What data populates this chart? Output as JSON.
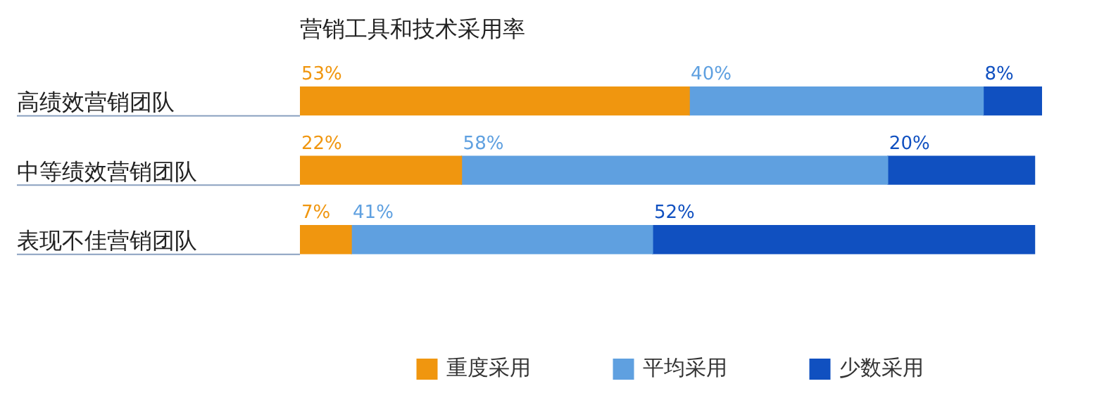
{
  "chart_data": {
    "type": "bar",
    "orientation": "horizontal",
    "stacked": true,
    "title": "营销工具和技术采用率",
    "categories": [
      "高绩效营销团队",
      "中等绩效营销团队",
      "表现不佳营销团队"
    ],
    "series": [
      {
        "name": "重度采用",
        "color": "#f0960f",
        "values": [
          53,
          22,
          7
        ],
        "value_labels": [
          "53%",
          "22%",
          "7%"
        ]
      },
      {
        "name": "平均采用",
        "color": "#5fa0e0",
        "values": [
          40,
          58,
          41
        ],
        "value_labels": [
          "40%",
          "58%",
          "41%"
        ]
      },
      {
        "name": "少数采用",
        "color": "#1050c0",
        "values": [
          8,
          20,
          52
        ],
        "value_labels": [
          "8%",
          "20%",
          "52%"
        ]
      }
    ],
    "legend": "bottom",
    "tick_labels": "y"
  }
}
